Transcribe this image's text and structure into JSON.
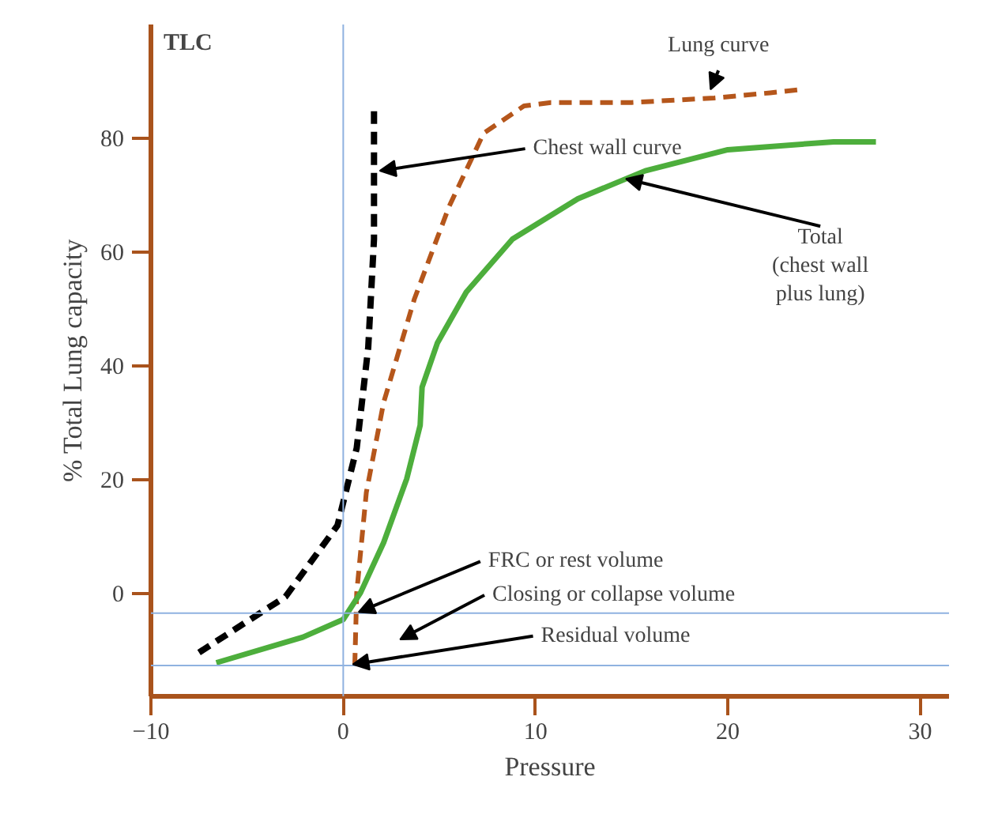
{
  "chart_data": {
    "type": "line",
    "xlabel": "Pressure",
    "ylabel": "% Total Lung capacity",
    "xlim": [
      -10,
      31.5
    ],
    "ylim": [
      -18,
      100
    ],
    "xticks": [
      -10,
      0,
      10,
      20,
      30
    ],
    "yticks": [
      0,
      20,
      40,
      60,
      80
    ],
    "grid": false,
    "marker": "none",
    "series": [
      {
        "color": "#000000",
        "line_style": "dashed",
        "x": [
          -7.5,
          -3.0,
          -0.3,
          0.7,
          1.3,
          1.6,
          1.6
        ],
        "values": [
          -10.3,
          -0.5,
          12,
          25.6,
          43.3,
          62.3,
          85
        ]
      },
      {
        "color": "#b5561b",
        "line_style": "dashed",
        "x": [
          0.6,
          0.7,
          1.2,
          2.1,
          3.7,
          5.5,
          7.3,
          9.4,
          10.8,
          15.0,
          19.3,
          22.2,
          23.8
        ],
        "values": [
          -12.6,
          0.2,
          17.8,
          33.6,
          51.8,
          68,
          80.9,
          85.7,
          86.3,
          86.3,
          87.1,
          88,
          88.6
        ]
      },
      {
        "color": "#4dae3c",
        "line_style": "solid",
        "x": [
          -6.6,
          -2.1,
          0,
          0.9,
          2.1,
          3.3,
          4.0,
          4.1,
          4.9,
          6.4,
          8.8,
          12.2,
          15.7,
          20,
          25.5,
          27.7
        ],
        "values": [
          -12.1,
          -7.6,
          -4.5,
          0.2,
          9,
          20.2,
          29.6,
          36.3,
          44.1,
          53,
          62.3,
          69.4,
          74.3,
          78,
          79.4,
          79.4
        ]
      }
    ],
    "ref_lines": [
      {
        "axis": "x",
        "value": 0,
        "color": "#8fb2e0"
      },
      {
        "axis": "y",
        "value": -3.4,
        "color": "#8fb2e0"
      },
      {
        "axis": "y",
        "value": -12.6,
        "color": "#8fb2e0"
      }
    ],
    "annotations": [
      "TLC",
      {
        "text": "Lung curve",
        "x": 19.1,
        "y": 88.6
      },
      {
        "text": "Chest wall curve",
        "x": 1.9,
        "y": 74.3
      },
      {
        "text": "Total\n(chest wall\nplus lung)",
        "x": 14.7,
        "y": 72.9
      },
      {
        "text": "FRC or rest volume",
        "x": 0.8,
        "y": -3.2
      },
      "Closing or collapse volume",
      {
        "text": "Residual volume",
        "x": 0.5,
        "y": -12.4
      }
    ]
  }
}
